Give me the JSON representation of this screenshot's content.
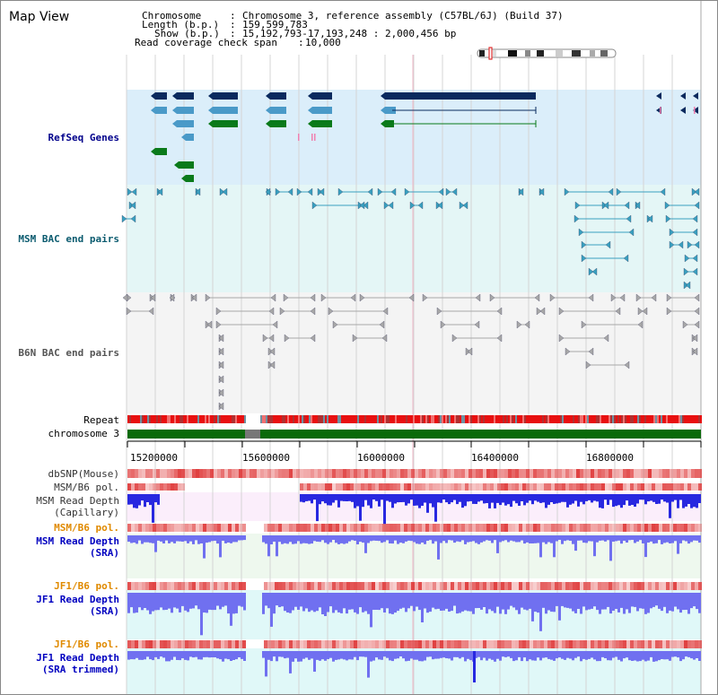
{
  "app": {
    "title": "Map View"
  },
  "header": {
    "chromosome_label": "Chromosome",
    "chromosome_value": "Chromosome 3, reference assembly (C57BL/6J) (Build 37)",
    "length_label": "Length (b.p.)",
    "length_value": "159,599,783",
    "show_label": "Show (b.p.)",
    "show_value": "15,192,793-17,193,248 : 2,000,456 bp",
    "coverage_label": "Read coverage check span",
    "coverage_value": "10,000"
  },
  "tracks": {
    "refseq": "RefSeq Genes",
    "msm_bac": "MSM BAC end pairs",
    "b6n_bac": "B6N BAC end pairs",
    "repeat": "Repeat",
    "chromosome": "chromosome 3",
    "dbsnp": "dbSNP(Mouse)",
    "msm_b6_pol_1": "MSM/B6 pol.",
    "msm_depth_cap_1": "MSM Read Depth",
    "msm_depth_cap_2": "(Capillary)",
    "msm_b6_pol_2": "MSM/B6 pol.",
    "msm_depth_sra_1": "MSM Read Depth",
    "msm_depth_sra_2": "(SRA)",
    "jf1_b6_pol_1": "JF1/B6 pol.",
    "jf1_depth_sra_1": "JF1 Read Depth",
    "jf1_depth_sra_2": "(SRA)",
    "jf1_b6_pol_2": "JF1/B6 pol.",
    "jf1_depth_trim_1": "JF1 Read Depth",
    "jf1_depth_trim_2": "(SRA trimmed)"
  },
  "axis": {
    "ticks": [
      "15200000",
      "15600000",
      "16000000",
      "16400000",
      "16800000"
    ]
  },
  "colors": {
    "gene_navy": "#0a2a5e",
    "gene_light": "#4a9ac8",
    "gene_green": "#0a7a1a",
    "refseq_bg": "#dbeefa",
    "bac_bg": "#e4f6f6",
    "chromosome_bar": "#0a6a0a",
    "depth_blue": "#2828e0",
    "depth_light": "#7070f0",
    "polymorphism_red": "#e04040"
  }
}
